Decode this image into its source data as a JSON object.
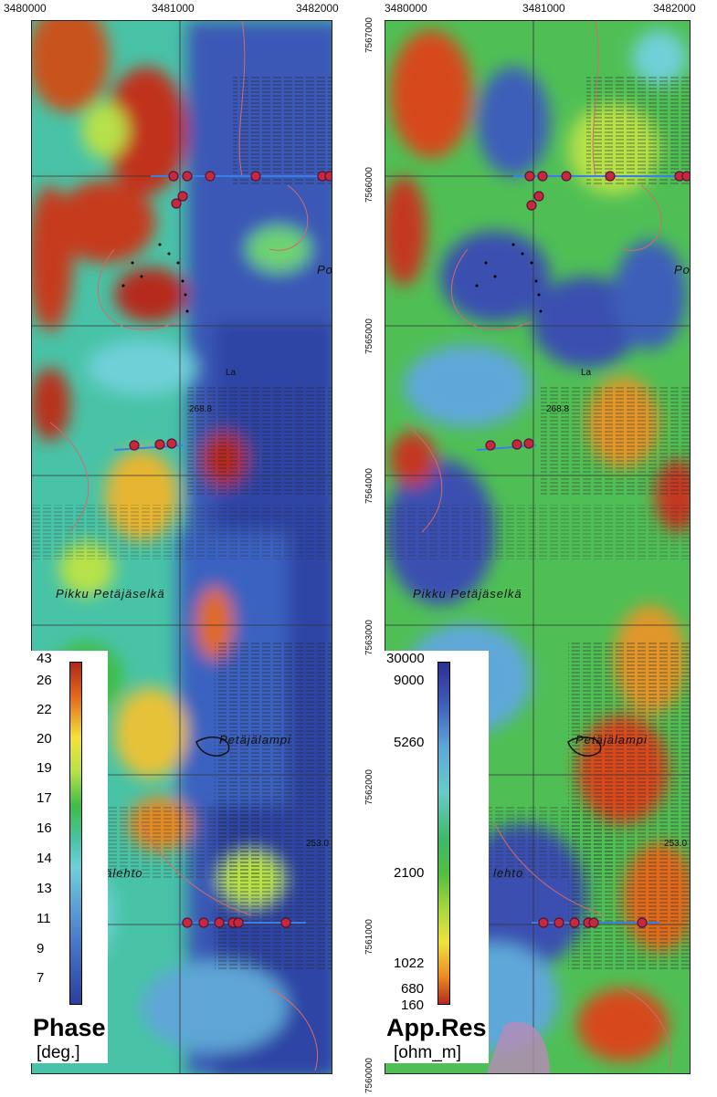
{
  "axes": {
    "easting_ticks": [
      "3480000",
      "3481000",
      "3482000"
    ],
    "northing_ticks": [
      "7567000",
      "7566000",
      "7565000",
      "7564000",
      "7563000",
      "7562000",
      "7561000",
      "7560000"
    ]
  },
  "map_labels": {
    "place_1": "Pikku Petäjäselkä",
    "place_2": "Petäjälampi",
    "place_3_left": "ajälehto",
    "place_3_right": "lehto",
    "place_4": "Pors",
    "elev_1": "268.8",
    "elev_2": "253.0",
    "spot_1": "La"
  },
  "phase_panel": {
    "legend_title": "Phase",
    "legend_unit": "[deg.]",
    "legend_ticks": [
      "43",
      "26",
      "22",
      "20",
      "19",
      "17",
      "16",
      "14",
      "13",
      "11",
      "9",
      "7"
    ]
  },
  "resistivity_panel": {
    "legend_title": "App.Res",
    "legend_unit": "[ohm_m]",
    "legend_ticks": [
      "30000",
      "9000",
      "5260",
      "2100",
      "1022",
      "680",
      "160"
    ]
  },
  "colors": {
    "phase_high": "#b0281a",
    "phase_low": "#2b3f9e",
    "res_high": "#2e2f8e",
    "res_low": "#b22a1c",
    "station_marker": "#c8283c",
    "profile_line": "#3d7ee6",
    "contour_line": "#d46a6a"
  }
}
